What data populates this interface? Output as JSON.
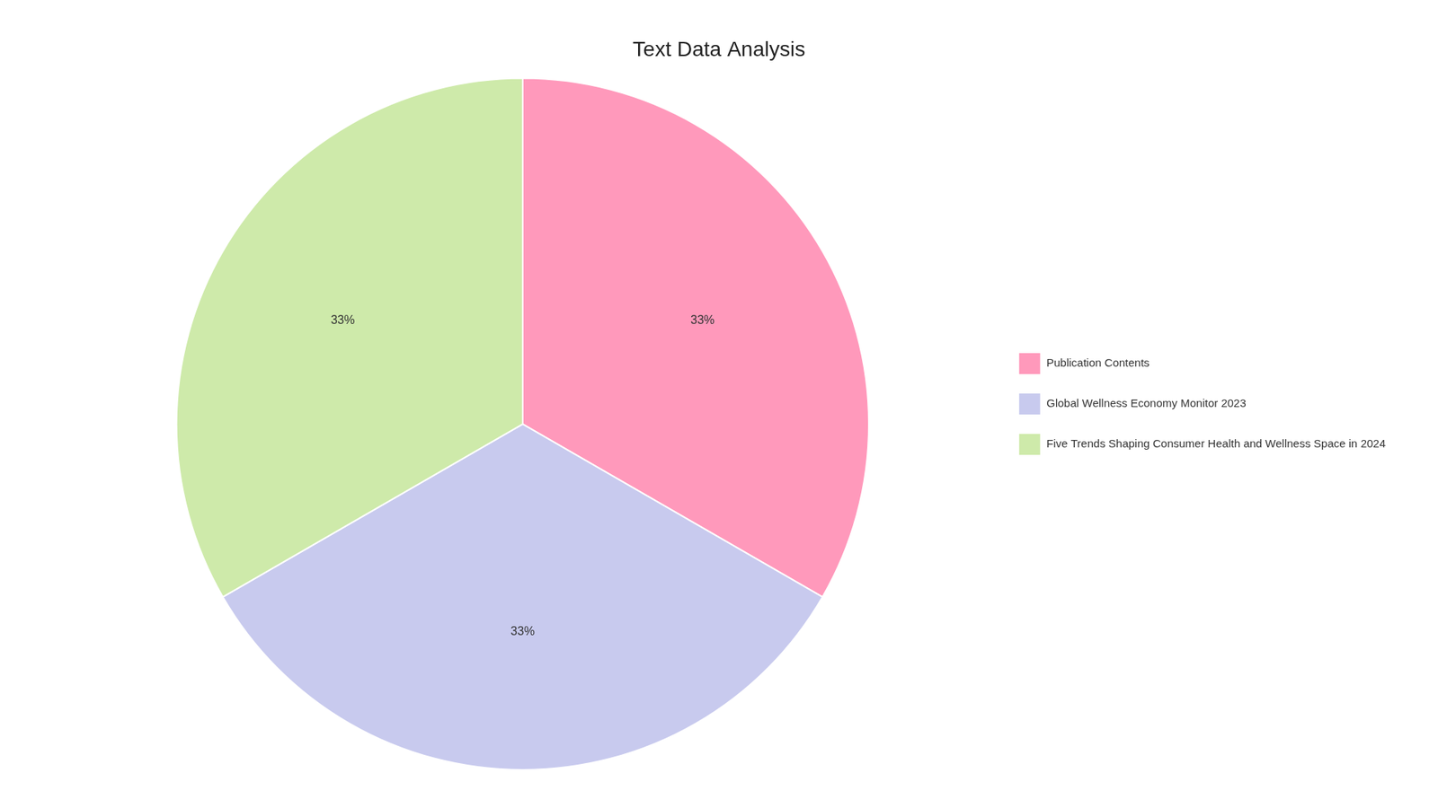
{
  "chart_data": {
    "type": "pie",
    "title": "Text Data Analysis",
    "categories": [
      "Publication Contents",
      "Global Wellness Economy Monitor 2023",
      "Five Trends Shaping Consumer Health and Wellness Space in 2024"
    ],
    "values": [
      33,
      33,
      33
    ],
    "value_labels": [
      "33%",
      "33%",
      "33%"
    ],
    "colors": [
      "#FF99BB",
      "#C8CAEE",
      "#CEEAAA"
    ],
    "data_labels": true,
    "legend": "right"
  }
}
